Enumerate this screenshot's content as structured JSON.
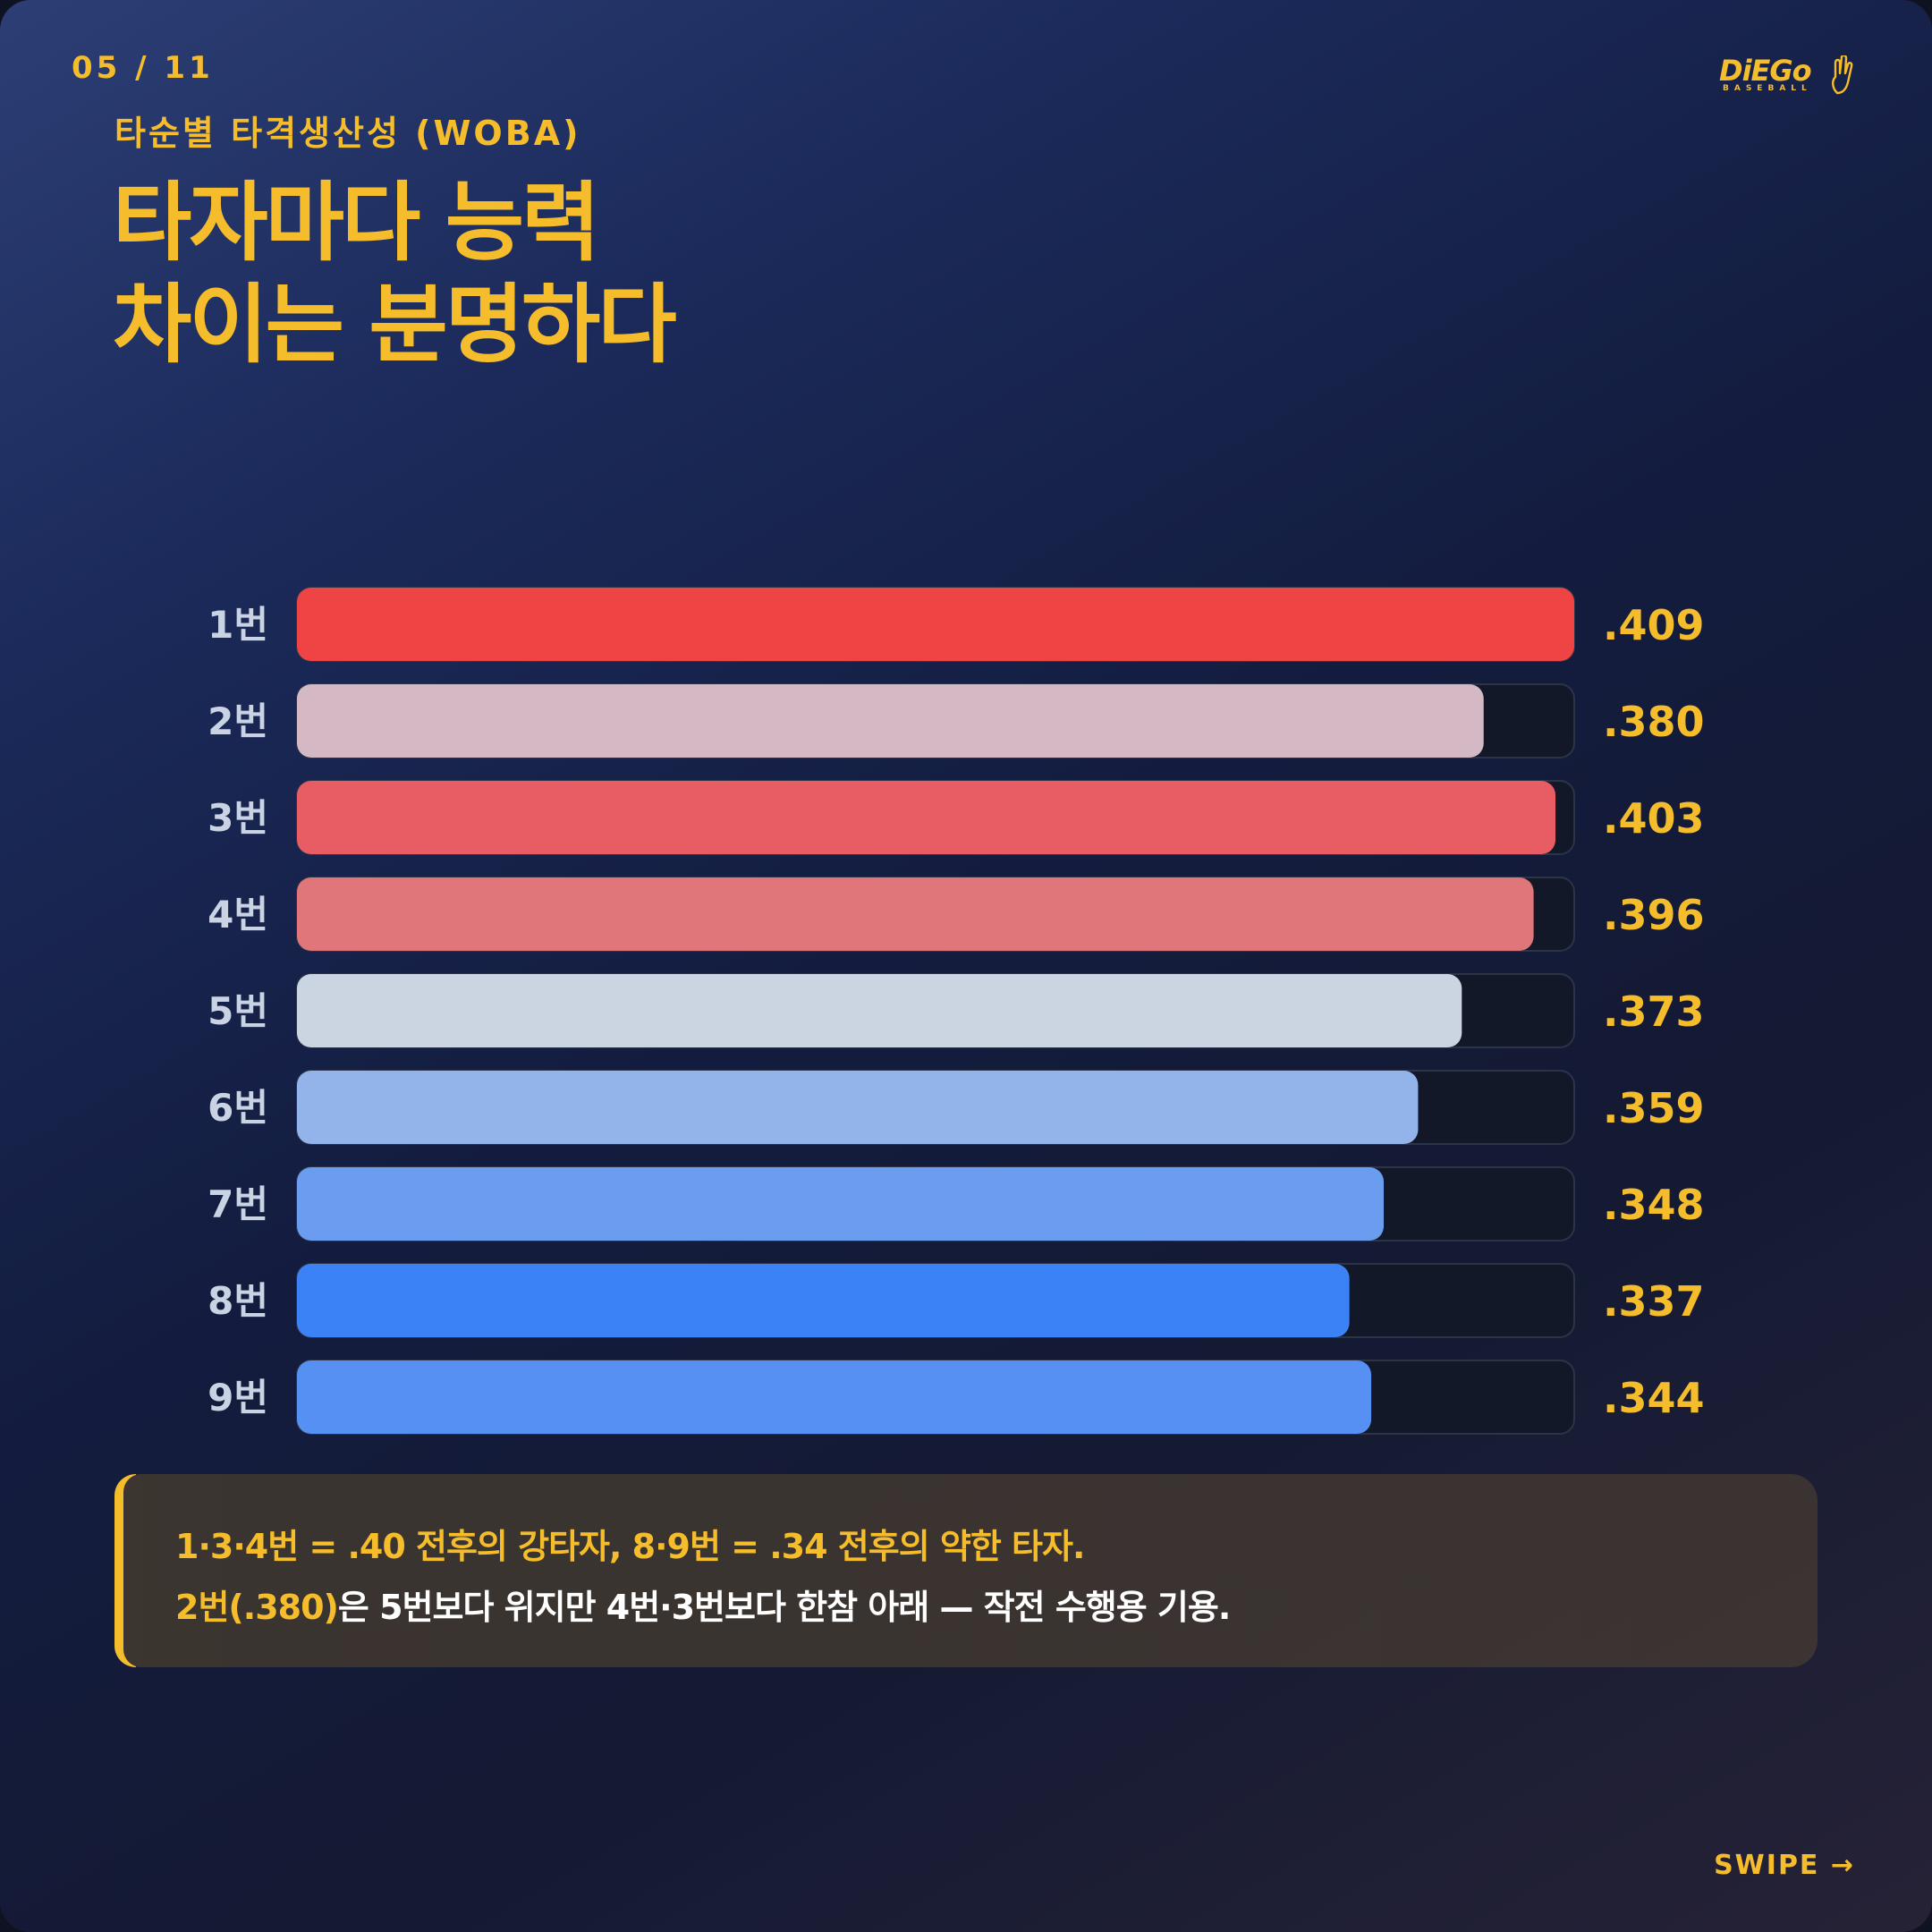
{
  "page_indicator": "05 / 11",
  "brand": {
    "logo_text": "DiEGo",
    "logo_subtext": "BASEBALL"
  },
  "header": {
    "subtitle": "타순별 타격생산성 (WOBA)",
    "title_line1": "타자마다 능력",
    "title_line2": "차이는 분명하다"
  },
  "chart_data": {
    "type": "bar",
    "orientation": "horizontal",
    "categories": [
      "1번",
      "2번",
      "3번",
      "4번",
      "5번",
      "6번",
      "7번",
      "8번",
      "9번"
    ],
    "values": [
      0.409,
      0.38,
      0.403,
      0.396,
      0.373,
      0.359,
      0.348,
      0.337,
      0.344
    ],
    "value_labels": [
      ".409",
      ".380",
      ".403",
      ".396",
      ".373",
      ".359",
      ".348",
      ".337",
      ".344"
    ],
    "bar_colors": [
      "#ef4444",
      "#d4b8c4",
      "#e85d64",
      "#e07679",
      "#cbd5e1",
      "#93b4ea",
      "#6a9cef",
      "#3b82f6",
      "#5590f2"
    ],
    "grid": false,
    "legend": "none"
  },
  "note": {
    "line1": "1·3·4번 = .40 전후의 강타자, 8·9번 = .34 전후의 약한 타자.",
    "line2_highlight": "2번(.380)",
    "line2_rest": "은 5번보다 위지만 4번·3번보다 한참 아래 — 작전 수행용 기용."
  },
  "swipe_label": "SWIPE →",
  "colors": {
    "accent": "#f5bd2c",
    "track": "#121828",
    "label": "#c9d3e3"
  }
}
